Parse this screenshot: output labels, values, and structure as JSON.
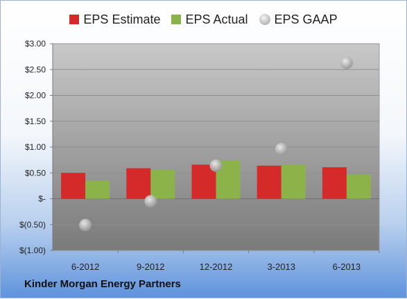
{
  "colors": {
    "estimate": "#d42a2a",
    "actual": "#8cb34a",
    "gaap": "#a6a6a6",
    "plot_top": "#c8c8c8",
    "plot_bottom": "#7a7a7a"
  },
  "legend": {
    "estimate": "EPS Estimate",
    "actual": "EPS Actual",
    "gaap": "EPS GAAP"
  },
  "footer": {
    "company": "Kinder Morgan Energy Partners"
  },
  "chart_data": {
    "type": "bar",
    "categories": [
      "6-2012",
      "9-2012",
      "12-2012",
      "3-2013",
      "6-2013"
    ],
    "series": [
      {
        "name": "EPS Estimate",
        "type": "bar",
        "values": [
          0.5,
          0.59,
          0.66,
          0.64,
          0.61
        ]
      },
      {
        "name": "EPS Actual",
        "type": "bar",
        "values": [
          0.35,
          0.56,
          0.74,
          0.66,
          0.47
        ]
      },
      {
        "name": "EPS GAAP",
        "type": "scatter",
        "values": [
          -0.51,
          -0.05,
          0.64,
          0.96,
          2.63
        ]
      }
    ],
    "ylim": [
      -1.0,
      3.0
    ],
    "yticks": [
      3.0,
      2.5,
      2.0,
      1.5,
      1.0,
      0.5,
      0,
      -0.5,
      -1.0
    ],
    "ytick_labels": [
      "$3.00",
      "$2.50",
      "$2.00",
      "$1.50",
      "$1.00",
      "$0.50",
      "$-",
      "$(0.50)",
      "$(1.00)"
    ],
    "grid": true,
    "legend_position": "top"
  }
}
